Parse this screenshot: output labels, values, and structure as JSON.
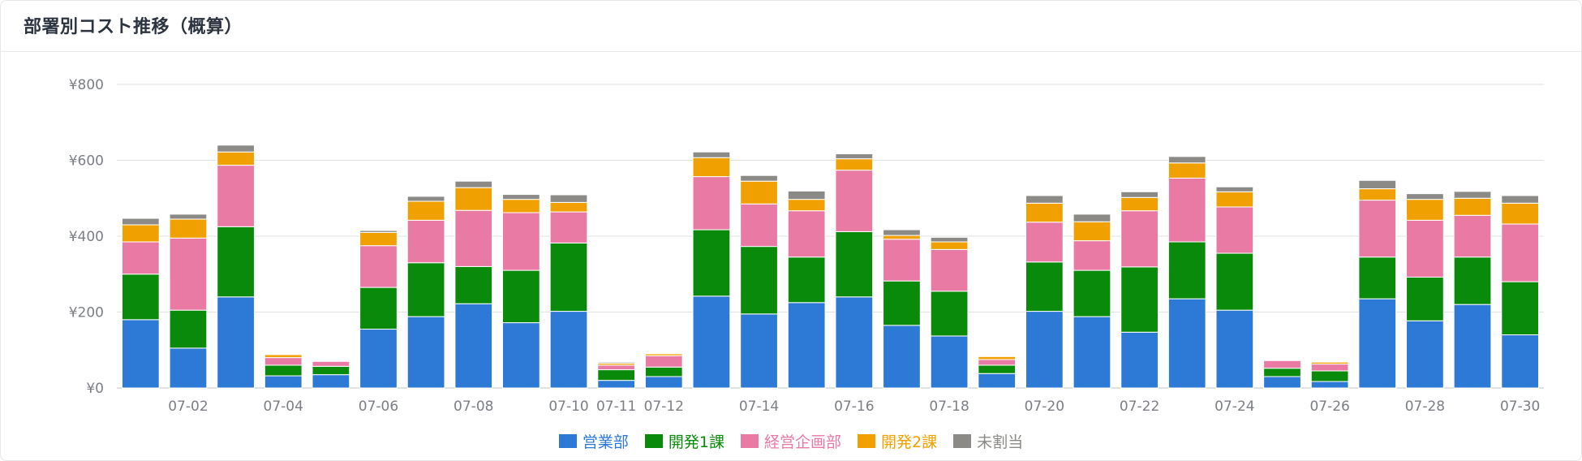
{
  "card": {
    "title": "部署別コスト推移（概算）"
  },
  "chart_data": {
    "type": "bar",
    "stacked": true,
    "title": "部署別コスト推移（概算）",
    "xlabel": "",
    "ylabel": "",
    "ylim": [
      0,
      800
    ],
    "yticks": [
      "¥0",
      "¥200",
      "¥400",
      "¥600",
      "¥800"
    ],
    "ytick_values": [
      0,
      200,
      400,
      600,
      800
    ],
    "grid": true,
    "legend": "bottom-center",
    "categories": [
      "07-01",
      "07-02",
      "07-03",
      "07-04",
      "07-05",
      "07-06",
      "07-07",
      "07-08",
      "07-09",
      "07-10",
      "07-11",
      "07-12",
      "07-13",
      "07-14",
      "07-15",
      "07-16",
      "07-17",
      "07-18",
      "07-19",
      "07-20",
      "07-21",
      "07-22",
      "07-23",
      "07-24",
      "07-25",
      "07-26",
      "07-27",
      "07-28",
      "07-29",
      "07-30"
    ],
    "visible_xtick_labels": [
      "07-02",
      "07-04",
      "07-06",
      "07-08",
      "07-10",
      "07-11",
      "07-12",
      "07-14",
      "07-16",
      "07-18",
      "07-20",
      "07-22",
      "07-24",
      "07-26",
      "07-28",
      "07-30"
    ],
    "series": [
      {
        "name": "営業部",
        "color": "#2d79d6",
        "values": [
          180,
          105,
          240,
          32,
          35,
          155,
          188,
          222,
          172,
          202,
          20,
          30,
          242,
          195,
          225,
          240,
          165,
          137,
          38,
          202,
          188,
          147,
          235,
          205,
          30,
          17,
          235,
          177,
          220,
          140
        ]
      },
      {
        "name": "開発1課",
        "color": "#0a8a0a",
        "values": [
          120,
          100,
          185,
          28,
          22,
          110,
          142,
          98,
          138,
          180,
          28,
          25,
          175,
          178,
          120,
          172,
          117,
          118,
          22,
          130,
          122,
          172,
          150,
          150,
          22,
          28,
          110,
          115,
          125,
          140
        ]
      },
      {
        "name": "経営企画部",
        "color": "#e87aa4",
        "values": [
          85,
          190,
          162,
          20,
          13,
          110,
          112,
          148,
          152,
          82,
          12,
          30,
          140,
          112,
          122,
          162,
          110,
          110,
          15,
          105,
          78,
          148,
          168,
          122,
          20,
          18,
          150,
          150,
          110,
          152
        ]
      },
      {
        "name": "開発2課",
        "color": "#f0a000",
        "values": [
          45,
          50,
          35,
          8,
          0,
          35,
          50,
          60,
          35,
          25,
          5,
          5,
          50,
          60,
          30,
          30,
          10,
          20,
          8,
          50,
          50,
          35,
          40,
          40,
          0,
          5,
          30,
          55,
          45,
          55
        ]
      },
      {
        "name": "未割当",
        "color": "#8c8a86",
        "values": [
          17,
          13,
          18,
          2,
          0,
          5,
          13,
          17,
          13,
          20,
          3,
          2,
          15,
          15,
          22,
          13,
          15,
          12,
          2,
          20,
          20,
          15,
          17,
          13,
          0,
          0,
          22,
          15,
          18,
          20
        ]
      }
    ]
  },
  "legend_text_colors": [
    "#2d79d6",
    "#0a8a0a",
    "#e87aa4",
    "#f0a000",
    "#8c8a86"
  ],
  "axis_colors": {
    "grid": "#dfe3e1",
    "axis": "#bfc3c7",
    "tick_text": "#7b7f85"
  }
}
